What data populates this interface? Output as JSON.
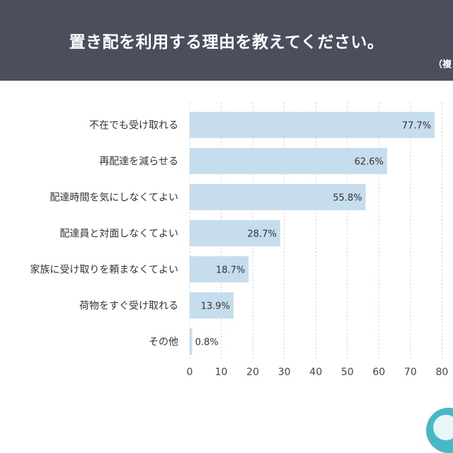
{
  "header": {
    "title": "置き配を利用する理由を教えてください。",
    "note": "（複"
  },
  "chart_data": {
    "type": "bar",
    "orientation": "horizontal",
    "title": "置き配を利用する理由を教えてください。",
    "categories": [
      "不在でも受け取れる",
      "再配達を減らせる",
      "配達時間を気にしなくてよい",
      "配達員と対面しなくてよい",
      "家族に受け取りを頼まなくてよい",
      "荷物をすぐ受け取れる",
      "その他"
    ],
    "values": [
      77.7,
      62.6,
      55.8,
      28.7,
      18.7,
      13.9,
      0.8
    ],
    "value_labels": [
      "77.7%",
      "62.6%",
      "55.8%",
      "28.7%",
      "18.7%",
      "13.9%",
      "0.8%"
    ],
    "x_ticks": [
      "0",
      "10",
      "20",
      "30",
      "40",
      "50",
      "60",
      "70",
      "80"
    ],
    "xlim": [
      0,
      80
    ],
    "grid": "dashed vertical",
    "bar_color": "#c5ddec"
  }
}
